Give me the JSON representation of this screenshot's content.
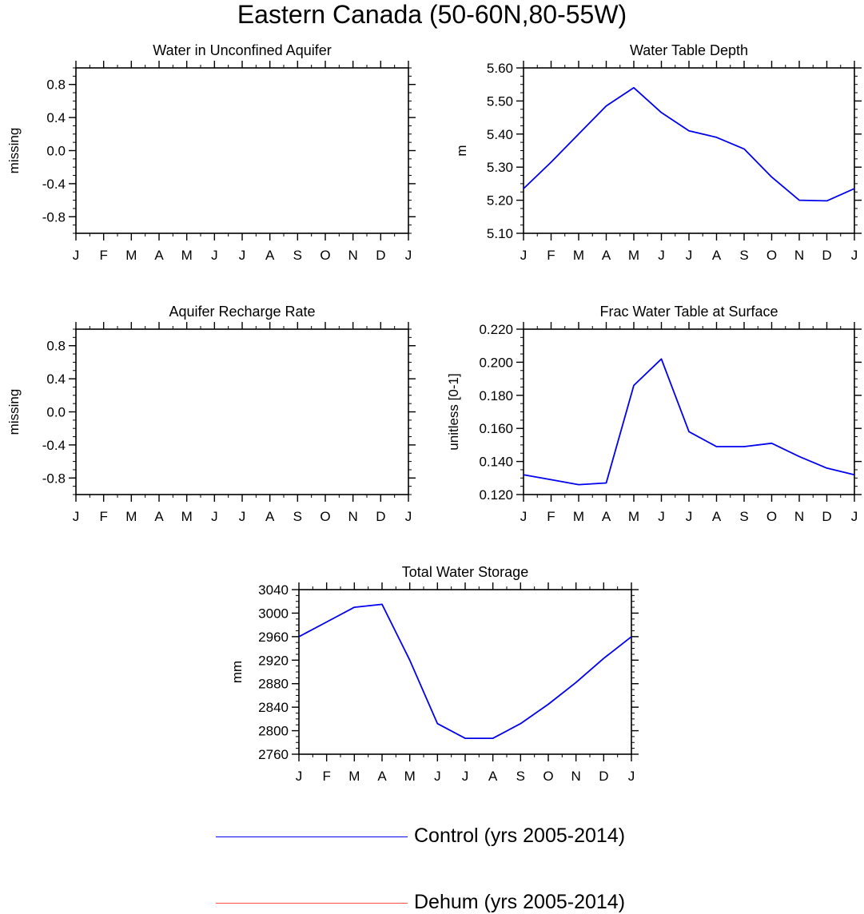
{
  "figure": {
    "title": "Eastern Canada (50-60N,80-55W)"
  },
  "month_labels": [
    "J",
    "F",
    "M",
    "A",
    "M",
    "J",
    "J",
    "A",
    "S",
    "O",
    "N",
    "D",
    "J"
  ],
  "chart_data": [
    {
      "type": "line",
      "title": "Water in Unconfined Aquifer",
      "ylabel": "missing",
      "xlabel": "",
      "ylim": [
        -1.0,
        1.0
      ],
      "yticks": [
        "0.8",
        "0.4",
        "0.0",
        "-0.4",
        "-0.8"
      ],
      "ytick_values": [
        0.8,
        0.4,
        0.0,
        -0.4,
        -0.8
      ],
      "series": []
    },
    {
      "type": "line",
      "title": "Water Table Depth",
      "ylabel": "m",
      "xlabel": "",
      "ylim": [
        5.1,
        5.6
      ],
      "yticks": [
        "5.60",
        "5.50",
        "5.40",
        "5.30",
        "5.20",
        "5.10"
      ],
      "ytick_values": [
        5.6,
        5.5,
        5.4,
        5.3,
        5.2,
        5.1
      ],
      "series": [
        {
          "name": "Control (yrs 2005-2014)",
          "color": "#0000ee",
          "values": [
            5.235,
            5.315,
            5.4,
            5.485,
            5.54,
            5.465,
            5.41,
            5.39,
            5.355,
            5.27,
            5.2,
            5.198,
            5.235
          ]
        }
      ]
    },
    {
      "type": "line",
      "title": "Aquifer Recharge Rate",
      "ylabel": "missing",
      "xlabel": "",
      "ylim": [
        -1.0,
        1.0
      ],
      "yticks": [
        "0.8",
        "0.4",
        "0.0",
        "-0.4",
        "-0.8"
      ],
      "ytick_values": [
        0.8,
        0.4,
        0.0,
        -0.4,
        -0.8
      ],
      "series": []
    },
    {
      "type": "line",
      "title": "Frac Water Table at Surface",
      "ylabel": "unitless [0-1]",
      "xlabel": "",
      "ylim": [
        0.12,
        0.22
      ],
      "yticks": [
        "0.220",
        "0.200",
        "0.180",
        "0.160",
        "0.140",
        "0.120"
      ],
      "ytick_values": [
        0.22,
        0.2,
        0.18,
        0.16,
        0.14,
        0.12
      ],
      "series": [
        {
          "name": "Control (yrs 2005-2014)",
          "color": "#0000ee",
          "values": [
            0.132,
            0.129,
            0.126,
            0.127,
            0.186,
            0.202,
            0.158,
            0.149,
            0.149,
            0.151,
            0.143,
            0.136,
            0.132
          ]
        }
      ]
    },
    {
      "type": "line",
      "title": "Total Water Storage",
      "ylabel": "mm",
      "xlabel": "",
      "ylim": [
        2760,
        3040
      ],
      "yticks": [
        "3040",
        "3000",
        "2960",
        "2920",
        "2880",
        "2840",
        "2800",
        "2760"
      ],
      "ytick_values": [
        3040,
        3000,
        2960,
        2920,
        2880,
        2840,
        2800,
        2760
      ],
      "series": [
        {
          "name": "Control (yrs 2005-2014)",
          "color": "#0000ee",
          "values": [
            2960,
            2985,
            3010,
            3015,
            2920,
            2812,
            2787,
            2787,
            2812,
            2845,
            2882,
            2923,
            2960
          ]
        }
      ]
    }
  ],
  "legend": [
    {
      "label": "Control (yrs 2005-2014)",
      "color": "#0000ee"
    },
    {
      "label": "Dehum (yrs 2005-2014)",
      "color": "#ff5040"
    }
  ]
}
